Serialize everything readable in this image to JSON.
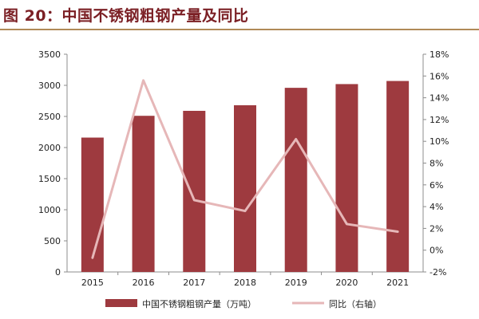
{
  "title": "图 20：中国不锈钢粗钢产量及同比",
  "chart_data": {
    "type": "bar",
    "categories": [
      "2015",
      "2016",
      "2017",
      "2018",
      "2019",
      "2020",
      "2021"
    ],
    "series": [
      {
        "name": "中国不锈钢粗钢产量（万吨）",
        "type": "bar",
        "axis": "left",
        "color": "#9e3a3f",
        "values": [
          2160,
          2510,
          2590,
          2680,
          2960,
          3020,
          3070
        ]
      },
      {
        "name": "同比（右轴）",
        "type": "line",
        "axis": "right",
        "color": "#e6b7b8",
        "values": [
          -0.7,
          15.6,
          4.6,
          3.6,
          10.2,
          2.4,
          1.7
        ]
      }
    ],
    "y_left": {
      "min": 0,
      "max": 3500,
      "ticks": [
        "0",
        "500",
        "1000",
        "1500",
        "2000",
        "2500",
        "3000",
        "3500"
      ]
    },
    "y_right": {
      "min": -2,
      "max": 18,
      "ticks": [
        "-2%",
        "0%",
        "2%",
        "4%",
        "6%",
        "8%",
        "10%",
        "12%",
        "14%",
        "16%",
        "18%"
      ]
    },
    "grid": false,
    "legend_position": "bottom"
  }
}
